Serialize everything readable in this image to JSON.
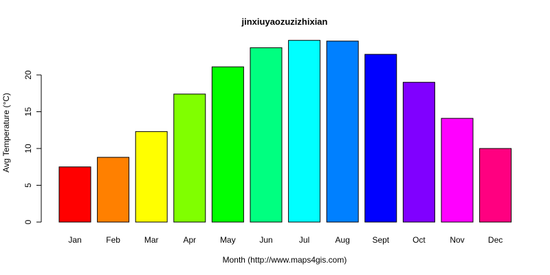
{
  "chart_data": {
    "type": "bar",
    "title": "jinxiuyaozuzizhixian",
    "xlabel": "Month (http://www.maps4gis.com)",
    "ylabel": "Avg Temperature (°C)",
    "categories": [
      "Jan",
      "Feb",
      "Mar",
      "Apr",
      "May",
      "Jun",
      "Jul",
      "Aug",
      "Sept",
      "Oct",
      "Nov",
      "Dec"
    ],
    "values": [
      7.5,
      8.8,
      12.3,
      17.4,
      21.1,
      23.7,
      24.7,
      24.6,
      22.8,
      19.0,
      14.1,
      10.0
    ],
    "colors": [
      "#FF0000",
      "#FF8000",
      "#FFFF00",
      "#80FF00",
      "#00FF00",
      "#00FF80",
      "#00FFFF",
      "#0080FF",
      "#0000FF",
      "#8000FF",
      "#FF00FF",
      "#FF0080"
    ],
    "yticks": [
      0,
      5,
      10,
      15,
      20
    ],
    "ylim": [
      0,
      25
    ],
    "grid": false,
    "legend": "none"
  }
}
